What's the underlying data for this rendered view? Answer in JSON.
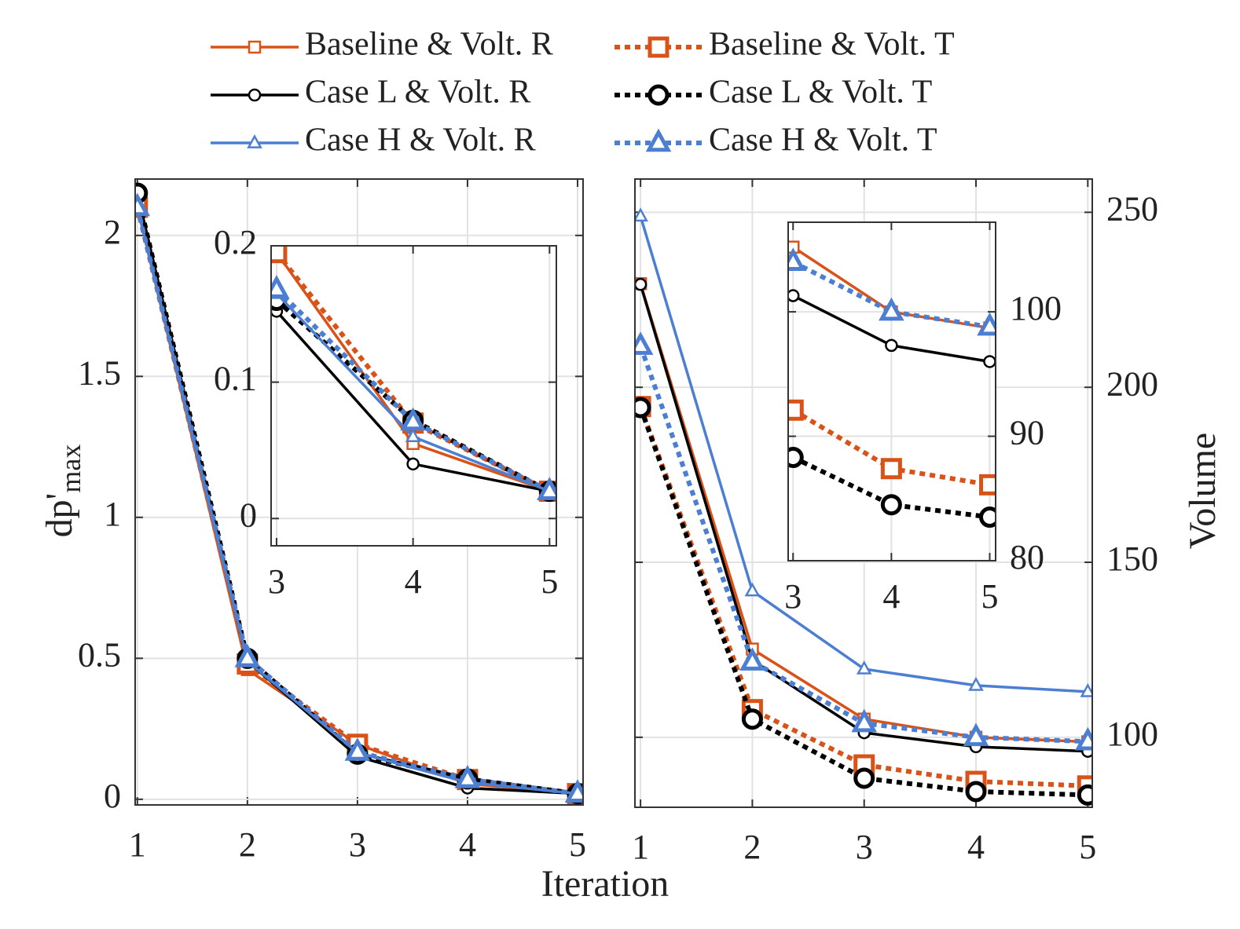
{
  "chart_data": [
    {
      "type": "line",
      "ylabel": {
        "main": "dp'",
        "sub": "max"
      },
      "xlabel": "Iteration",
      "x": [
        1,
        2,
        3,
        4,
        5
      ],
      "xlim": [
        0.98,
        5.05
      ],
      "xticks": [
        1,
        2,
        3,
        4,
        5
      ],
      "ylim": [
        -0.02,
        2.2
      ],
      "yticks": [
        0,
        0.5,
        1,
        1.5,
        2
      ],
      "grid": true,
      "yaxis_side": "left",
      "series": [
        {
          "name": "Baseline & Volt. R",
          "color": "#d95319",
          "line_style": "solid",
          "marker": "square",
          "values": [
            2.1,
            0.46,
            0.195,
            0.055,
            0.02
          ]
        },
        {
          "name": "Baseline & Volt. T",
          "color": "#d95319",
          "line_style": "dotted",
          "marker": "square",
          "values": [
            2.1,
            0.48,
            0.195,
            0.07,
            0.02
          ]
        },
        {
          "name": "Case L & Volt. R",
          "color": "#000000",
          "line_style": "solid",
          "marker": "circle",
          "values": [
            2.15,
            0.49,
            0.152,
            0.04,
            0.02
          ]
        },
        {
          "name": "Case L & Volt. T",
          "color": "#000000",
          "line_style": "dotted",
          "marker": "circle",
          "values": [
            2.15,
            0.5,
            0.16,
            0.072,
            0.02
          ]
        },
        {
          "name": "Case H & Volt. R",
          "color": "#4c7fd1",
          "line_style": "solid",
          "marker": "triangle",
          "values": [
            2.1,
            0.49,
            0.165,
            0.06,
            0.02
          ]
        },
        {
          "name": "Case H & Volt. T",
          "color": "#4c7fd1",
          "line_style": "dotted",
          "marker": "triangle",
          "values": [
            2.1,
            0.5,
            0.168,
            0.071,
            0.02
          ]
        }
      ],
      "inset": {
        "xlim": [
          2.96,
          5.05
        ],
        "xticks": [
          3,
          4,
          5
        ],
        "ylim": [
          -0.02,
          0.2
        ],
        "yticks": [
          0,
          0.1,
          0.2
        ]
      }
    },
    {
      "type": "line",
      "ylabel": "Volume",
      "x": [
        1,
        2,
        3,
        4,
        5
      ],
      "xlim": [
        0.95,
        5.04
      ],
      "xticks": [
        1,
        2,
        3,
        4,
        5
      ],
      "ylim": [
        80,
        259.5
      ],
      "yticks": [
        100,
        150,
        200,
        250
      ],
      "grid": true,
      "yaxis_side": "right",
      "series": [
        {
          "color": "#d95319",
          "line_style": "solid",
          "marker": "square",
          "values": [
            229.6,
            125.2,
            105.2,
            100.0,
            98.7
          ]
        },
        {
          "color": "#d95319",
          "line_style": "dotted",
          "marker": "square",
          "values": [
            194.5,
            107.9,
            92.1,
            87.4,
            86.1
          ]
        },
        {
          "color": "#000000",
          "line_style": "solid",
          "marker": "circle",
          "values": [
            229.4,
            122,
            101.3,
            97.3,
            96
          ]
        },
        {
          "color": "#000000",
          "line_style": "dotted",
          "marker": "circle",
          "values": [
            194.2,
            105.2,
            88.3,
            84.5,
            83.5
          ]
        },
        {
          "color": "#4c7fd1",
          "line_style": "solid",
          "marker": "triangle",
          "values": [
            248.9,
            141.8,
            119.5,
            114.8,
            113
          ]
        },
        {
          "color": "#4c7fd1",
          "line_style": "dotted",
          "marker": "triangle",
          "values": [
            211.8,
            121.6,
            104,
            100,
            98.8
          ]
        }
      ],
      "inset": {
        "xlim": [
          2.95,
          5.06
        ],
        "xticks": [
          3,
          4,
          5
        ],
        "ylim": [
          80,
          107.2
        ],
        "yticks": [
          80,
          90,
          100
        ]
      }
    }
  ]
}
